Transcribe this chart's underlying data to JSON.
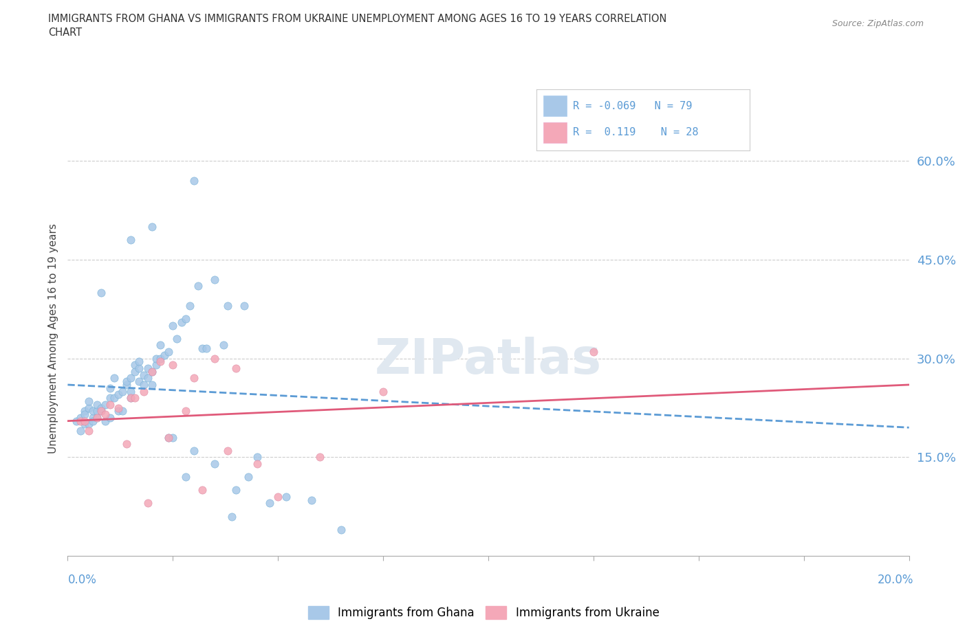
{
  "title_line1": "IMMIGRANTS FROM GHANA VS IMMIGRANTS FROM UKRAINE UNEMPLOYMENT AMONG AGES 16 TO 19 YEARS CORRELATION",
  "title_line2": "CHART",
  "source_text": "Source: ZipAtlas.com",
  "ylabel": "Unemployment Among Ages 16 to 19 years",
  "legend_ghana": "Immigrants from Ghana",
  "legend_ukraine": "Immigrants from Ukraine",
  "r_ghana": "-0.069",
  "n_ghana": "79",
  "r_ukraine": "0.119",
  "n_ukraine": "28",
  "color_ghana": "#a8c8e8",
  "color_ukraine": "#f4a8b8",
  "color_ghana_line": "#5b9bd5",
  "color_ukraine_line": "#e05a7a",
  "color_axis_labels": "#5b9bd5",
  "color_text": "#444444",
  "xmin": 0.0,
  "xmax": 20.0,
  "ymin": 0.0,
  "ymax": 66.0,
  "yticks": [
    15.0,
    30.0,
    45.0,
    60.0
  ],
  "ghana_x": [
    0.2,
    0.3,
    0.3,
    0.4,
    0.4,
    0.4,
    0.5,
    0.5,
    0.5,
    0.6,
    0.6,
    0.6,
    0.7,
    0.7,
    0.7,
    0.8,
    0.8,
    0.9,
    0.9,
    1.0,
    1.0,
    1.0,
    1.1,
    1.1,
    1.2,
    1.2,
    1.3,
    1.3,
    1.4,
    1.4,
    1.5,
    1.5,
    1.5,
    1.6,
    1.6,
    1.7,
    1.7,
    1.7,
    1.8,
    1.8,
    1.9,
    1.9,
    2.0,
    2.0,
    2.1,
    2.1,
    2.2,
    2.2,
    2.3,
    2.4,
    2.4,
    2.5,
    2.5,
    2.6,
    2.7,
    2.8,
    2.8,
    2.9,
    3.0,
    3.1,
    3.2,
    3.3,
    3.5,
    3.5,
    3.7,
    3.8,
    3.9,
    4.0,
    4.2,
    4.3,
    4.5,
    4.8,
    5.2,
    5.8,
    6.5,
    1.5,
    2.0,
    0.8,
    3.0
  ],
  "ghana_y": [
    20.5,
    19.0,
    21.0,
    20.0,
    22.0,
    21.5,
    20.0,
    22.5,
    23.5,
    21.0,
    20.5,
    22.0,
    21.0,
    22.0,
    23.0,
    22.0,
    22.5,
    20.5,
    23.0,
    24.0,
    25.5,
    21.0,
    24.0,
    27.0,
    24.5,
    22.0,
    22.0,
    25.0,
    26.0,
    26.5,
    24.0,
    27.0,
    25.0,
    29.0,
    28.0,
    28.5,
    29.5,
    26.5,
    26.0,
    27.5,
    27.0,
    28.5,
    28.0,
    26.0,
    29.0,
    30.0,
    30.0,
    32.0,
    30.5,
    31.0,
    18.0,
    18.0,
    35.0,
    33.0,
    35.5,
    12.0,
    36.0,
    38.0,
    16.0,
    41.0,
    31.5,
    31.5,
    14.0,
    42.0,
    32.0,
    38.0,
    6.0,
    10.0,
    38.0,
    12.0,
    15.0,
    8.0,
    9.0,
    8.5,
    4.0,
    48.0,
    50.0,
    40.0,
    57.0
  ],
  "ukraine_x": [
    0.3,
    0.4,
    0.5,
    0.7,
    0.8,
    0.9,
    1.0,
    1.2,
    1.4,
    1.5,
    1.6,
    1.8,
    1.9,
    2.0,
    2.2,
    2.4,
    2.5,
    2.8,
    3.0,
    3.2,
    3.5,
    3.8,
    4.0,
    4.5,
    5.0,
    6.0,
    7.5,
    12.5
  ],
  "ukraine_y": [
    20.5,
    20.5,
    19.0,
    21.0,
    22.0,
    21.5,
    23.0,
    22.5,
    17.0,
    24.0,
    24.0,
    25.0,
    8.0,
    28.0,
    29.5,
    18.0,
    29.0,
    22.0,
    27.0,
    10.0,
    30.0,
    16.0,
    28.5,
    14.0,
    9.0,
    15.0,
    25.0,
    31.0
  ],
  "trend_ghana_x0": 0.0,
  "trend_ghana_y0": 26.0,
  "trend_ghana_x1": 20.0,
  "trend_ghana_y1": 19.5,
  "trend_ukraine_x0": 0.0,
  "trend_ukraine_y0": 20.5,
  "trend_ukraine_x1": 20.0,
  "trend_ukraine_y1": 26.0
}
